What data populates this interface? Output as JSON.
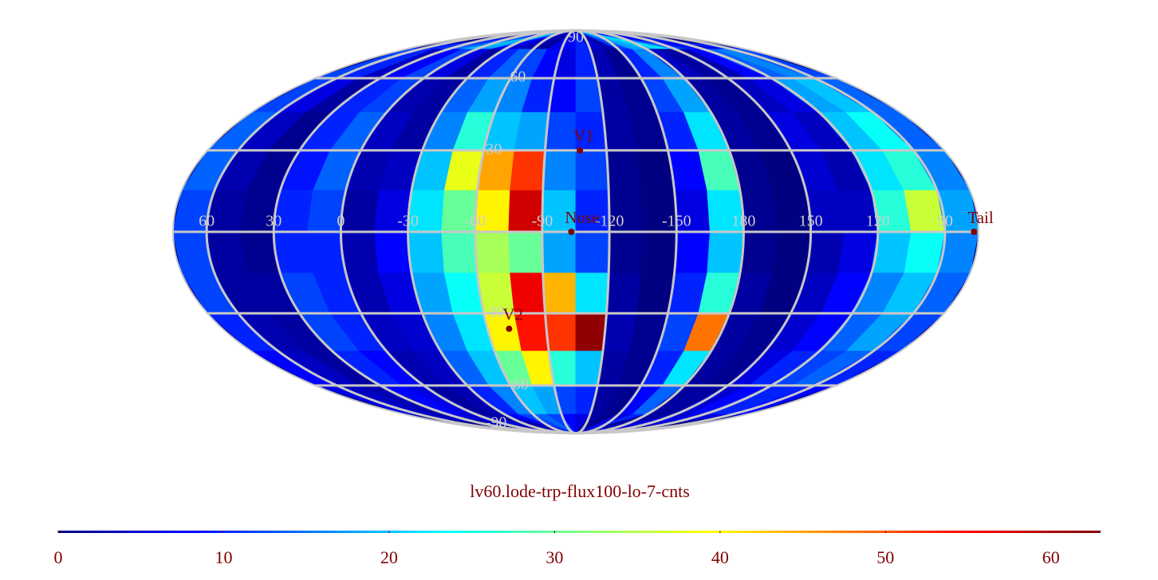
{
  "chart_data": {
    "type": "heatmap",
    "projection": "mollweide",
    "colormap": "jet",
    "title": "lv60.lode-trp-flux100-lo-7-cnts",
    "center_lon": -105,
    "lon_ticks": [
      60,
      30,
      0,
      -30,
      -60,
      -90,
      -120,
      -150,
      180,
      150,
      120,
      90
    ],
    "lat_ticks": [
      90,
      60,
      30,
      -30,
      -60,
      -90
    ],
    "lat": [
      82.5,
      67.5,
      52.5,
      37.5,
      22.5,
      7.5,
      -7.5,
      -22.5,
      -37.5,
      -52.5,
      -67.5,
      -82.5
    ],
    "lon": [
      67.5,
      52.5,
      37.5,
      22.5,
      7.5,
      -7.5,
      -22.5,
      -37.5,
      -52.5,
      -67.5,
      -82.5,
      -97.5,
      -112.5,
      -127.5,
      -142.5,
      -157.5,
      -172.5,
      172.5,
      157.5,
      142.5,
      127.5,
      112.5,
      97.5,
      82.5
    ],
    "values": [
      [
        10,
        10,
        12,
        15,
        20,
        18,
        8,
        5,
        3,
        2,
        6,
        8,
        10,
        5,
        3,
        12,
        18,
        20,
        22,
        15,
        10,
        8,
        6,
        10
      ],
      [
        12,
        10,
        4,
        8,
        12,
        6,
        2,
        10,
        14,
        12,
        8,
        6,
        10,
        3,
        1,
        10,
        16,
        4,
        2,
        3,
        8,
        14,
        16,
        12
      ],
      [
        12,
        6,
        2,
        10,
        12,
        3,
        2,
        14,
        18,
        16,
        10,
        8,
        12,
        2,
        1,
        12,
        18,
        2,
        1,
        4,
        6,
        18,
        20,
        14
      ],
      [
        14,
        4,
        1,
        10,
        14,
        4,
        2,
        16,
        26,
        20,
        18,
        12,
        10,
        2,
        1,
        10,
        22,
        2,
        1,
        6,
        4,
        20,
        24,
        14
      ],
      [
        14,
        3,
        1,
        9,
        14,
        3,
        4,
        20,
        38,
        45,
        52,
        16,
        12,
        1,
        0,
        8,
        28,
        1,
        0,
        5,
        3,
        22,
        26,
        16
      ],
      [
        12,
        2,
        1,
        10,
        12,
        2,
        6,
        22,
        30,
        40,
        58,
        20,
        10,
        1,
        0,
        6,
        22,
        1,
        0,
        4,
        4,
        26,
        36,
        18
      ],
      [
        12,
        2,
        1,
        10,
        10,
        3,
        8,
        20,
        28,
        34,
        30,
        18,
        12,
        1,
        0,
        8,
        20,
        1,
        0,
        3,
        6,
        20,
        24,
        16
      ],
      [
        12,
        2,
        2,
        12,
        10,
        3,
        6,
        18,
        24,
        36,
        56,
        44,
        22,
        2,
        0,
        10,
        26,
        2,
        0,
        4,
        8,
        16,
        20,
        14
      ],
      [
        10,
        3,
        2,
        12,
        10,
        4,
        5,
        16,
        22,
        40,
        54,
        52,
        62,
        3,
        1,
        12,
        48,
        2,
        1,
        5,
        8,
        14,
        18,
        12
      ],
      [
        8,
        4,
        2,
        10,
        8,
        3,
        4,
        14,
        20,
        30,
        40,
        26,
        20,
        2,
        1,
        10,
        22,
        2,
        1,
        6,
        10,
        12,
        14,
        10
      ],
      [
        6,
        4,
        3,
        8,
        6,
        2,
        3,
        10,
        16,
        20,
        18,
        12,
        10,
        2,
        1,
        8,
        14,
        2,
        2,
        5,
        8,
        10,
        10,
        8
      ],
      [
        5,
        4,
        3,
        6,
        5,
        2,
        3,
        8,
        12,
        14,
        12,
        8,
        6,
        2,
        1,
        6,
        10,
        2,
        2,
        4,
        6,
        6,
        6,
        5
      ]
    ],
    "clim": [
      0,
      63
    ],
    "cticks": [
      0,
      10,
      20,
      30,
      40,
      50,
      60
    ],
    "points": [
      {
        "label": "V1",
        "lon": -107,
        "lat": 30
      },
      {
        "label": "Nose",
        "lon": -103,
        "lat": 0
      },
      {
        "label": "V2",
        "lon": -71,
        "lat": -36
      },
      {
        "label": "Tail",
        "lon": 77,
        "lat": 0
      }
    ]
  }
}
